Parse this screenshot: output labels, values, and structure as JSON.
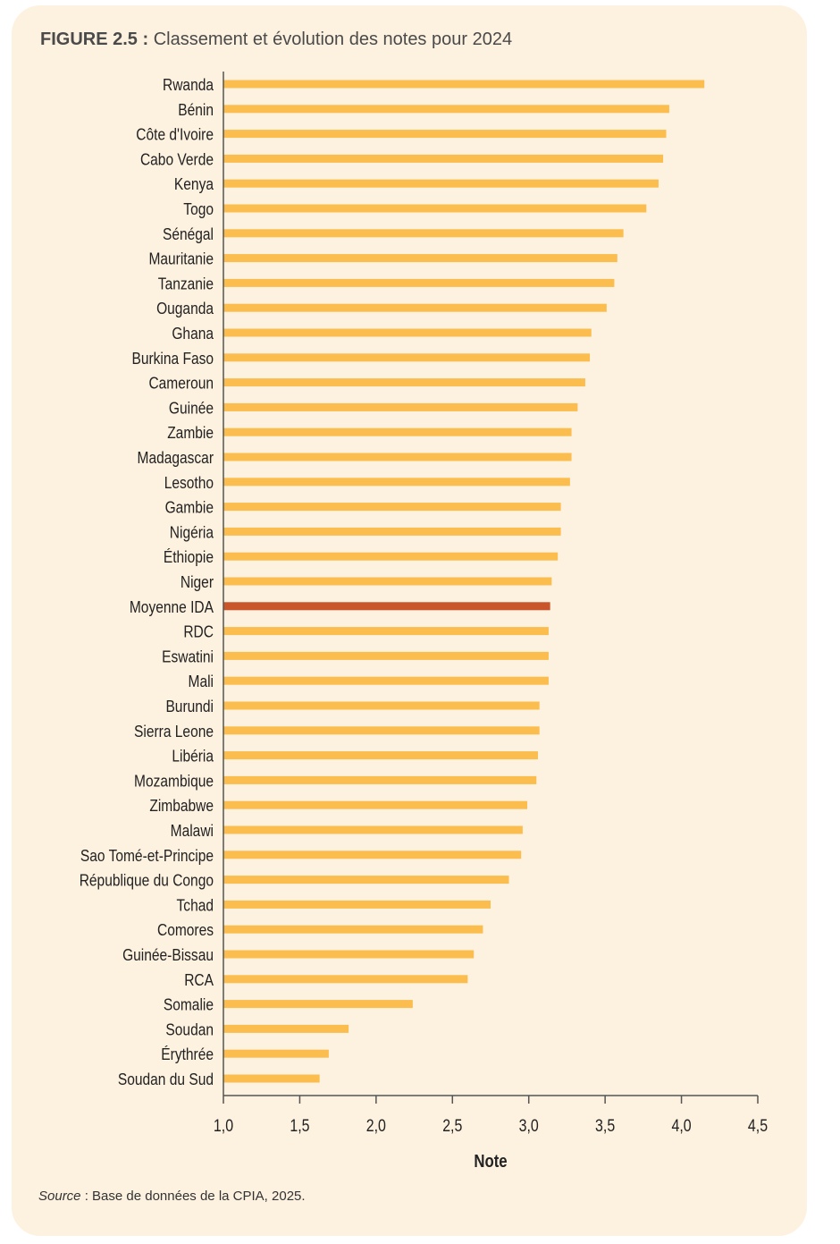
{
  "figure": {
    "label": "FIGURE 2.5 :",
    "title": "Classement et évolution des notes pour 2024"
  },
  "source": {
    "label": "Source",
    "text": " : Base de données de la CPIA, 2025."
  },
  "colors": {
    "bar": "#fbbd4d",
    "highlight": "#c8562a",
    "axis": "#555555",
    "label": "#222222",
    "panel": "#fdf1df"
  },
  "chart_data": {
    "type": "bar",
    "orientation": "horizontal",
    "xlabel": "Note",
    "xlim": [
      1.0,
      4.5
    ],
    "xticks": [
      "1,0",
      "1,5",
      "2,0",
      "2,5",
      "3,0",
      "3,5",
      "4,0",
      "4,5"
    ],
    "grid": false,
    "highlight_category": "Moyenne IDA",
    "categories": [
      "Rwanda",
      "Bénin",
      "Côte d'Ivoire",
      "Cabo Verde",
      "Kenya",
      "Togo",
      "Sénégal",
      "Mauritanie",
      "Tanzanie",
      "Ouganda",
      "Ghana",
      "Burkina Faso",
      "Cameroun",
      "Guinée",
      "Zambie",
      "Madagascar",
      "Lesotho",
      "Gambie",
      "Nigéria",
      "Éthiopie",
      "Niger",
      "Moyenne IDA",
      "RDC",
      "Eswatini",
      "Mali",
      "Burundi",
      "Sierra Leone",
      "Libéria",
      "Mozambique",
      "Zimbabwe",
      "Malawi",
      "Sao Tomé-et-Principe",
      "République du Congo",
      "Tchad",
      "Comores",
      "Guinée-Bissau",
      "RCA",
      "Somalie",
      "Soudan",
      "Érythrée",
      "Soudan du Sud"
    ],
    "values": [
      4.15,
      3.92,
      3.9,
      3.88,
      3.85,
      3.77,
      3.62,
      3.58,
      3.56,
      3.51,
      3.41,
      3.4,
      3.37,
      3.32,
      3.28,
      3.28,
      3.27,
      3.21,
      3.21,
      3.19,
      3.15,
      3.14,
      3.13,
      3.13,
      3.13,
      3.07,
      3.07,
      3.06,
      3.05,
      2.99,
      2.96,
      2.95,
      2.87,
      2.75,
      2.7,
      2.64,
      2.6,
      2.24,
      1.82,
      1.69,
      1.63
    ]
  }
}
